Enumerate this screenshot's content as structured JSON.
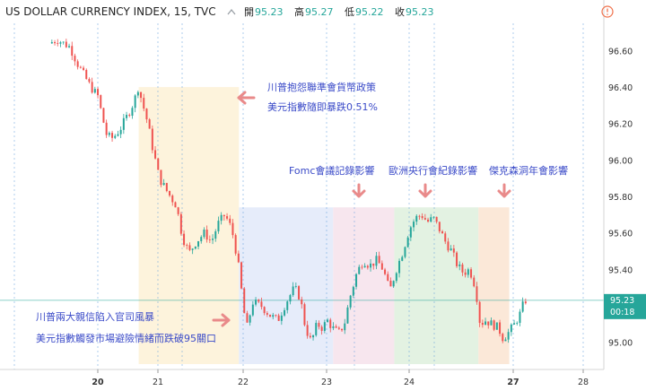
{
  "header": {
    "title": "US DOLLAR CURRENCY INDEX, 15, TVC",
    "open_label": "開",
    "open_value": "95.23",
    "high_label": "高",
    "high_value": "95.27",
    "low_label": "低",
    "low_value": "95.22",
    "close_label": "收",
    "close_value": "95.23",
    "warning_icon": "alert-circle-icon",
    "collapse_icon": "chevron-up-icon"
  },
  "colors": {
    "up": "#26a69a",
    "down": "#ef5350",
    "annotation_text": "#3b4bc8",
    "arrow": "#e98a8a",
    "price_tag": "#26a69a",
    "price_line": "#26a69a",
    "grid_vertical": "#4a90d9"
  },
  "annotations": [
    {
      "id": "a1",
      "lines": [
        "川普抱怨聯準會貨幣政策",
        "美元指數隨即暴跌0.51%"
      ]
    },
    {
      "id": "a2",
      "lines": [
        "川普兩大親信陷入官司風暴",
        "美元指數觸發市場避險情緒而跌破95關口"
      ]
    },
    {
      "id": "a3",
      "lines": [
        "Fomc會議記錄影響"
      ]
    },
    {
      "id": "a4",
      "lines": [
        "歐洲央行會紀錄影響"
      ]
    },
    {
      "id": "a5",
      "lines": [
        "傑克森洞年會影響"
      ]
    }
  ],
  "price_tag": {
    "last": "95.23",
    "countdown": "00:18"
  },
  "chart_data": {
    "type": "candlestick",
    "title": "US DOLLAR CURRENCY INDEX, 15, TVC",
    "x_ticks": [
      "20",
      "21",
      "22",
      "23",
      "24",
      "27",
      "28"
    ],
    "y_ticks": [
      "96.60",
      "96.40",
      "96.20",
      "96.00",
      "95.80",
      "95.60",
      "95.40",
      "95.20",
      "95.00"
    ],
    "ylim": [
      94.87,
      96.74
    ],
    "last_price": 95.23,
    "highlight_zones": [
      {
        "start": 20.68,
        "end": 21.95,
        "color": "#fdf3dc"
      },
      {
        "start": 21.95,
        "end": 23.08,
        "color": "#e6ecfa"
      },
      {
        "start": 23.08,
        "end": 23.82,
        "color": "#f7e6ee"
      },
      {
        "start": 23.82,
        "end": 24.92,
        "color": "#e3f2e2"
      },
      {
        "start": 24.92,
        "end": 25.3,
        "color": "#fbe8d8"
      }
    ],
    "price_path": [
      [
        19.45,
        96.64
      ],
      [
        19.55,
        96.66
      ],
      [
        19.7,
        96.62
      ],
      [
        19.8,
        96.52
      ],
      [
        19.95,
        96.4
      ],
      [
        20.05,
        96.35
      ],
      [
        20.12,
        96.24
      ],
      [
        20.2,
        96.13
      ],
      [
        20.3,
        96.12
      ],
      [
        20.42,
        96.17
      ],
      [
        20.55,
        96.25
      ],
      [
        20.65,
        96.32
      ],
      [
        20.72,
        96.4
      ],
      [
        20.8,
        96.3
      ],
      [
        20.88,
        96.2
      ],
      [
        20.95,
        96.08
      ],
      [
        21.05,
        95.9
      ],
      [
        21.15,
        95.82
      ],
      [
        21.25,
        95.75
      ],
      [
        21.32,
        95.58
      ],
      [
        21.4,
        95.49
      ],
      [
        21.48,
        95.55
      ],
      [
        21.58,
        95.6
      ],
      [
        21.66,
        95.55
      ],
      [
        21.74,
        95.65
      ],
      [
        21.82,
        95.7
      ],
      [
        21.9,
        95.62
      ],
      [
        21.97,
        95.45
      ],
      [
        22.05,
        95.15
      ],
      [
        22.08,
        95.08
      ],
      [
        22.15,
        95.22
      ],
      [
        22.25,
        95.2
      ],
      [
        22.35,
        95.15
      ],
      [
        22.45,
        95.12
      ],
      [
        22.55,
        95.22
      ],
      [
        22.65,
        95.3
      ],
      [
        22.72,
        95.24
      ],
      [
        22.78,
        95.08
      ],
      [
        22.85,
        95.0
      ],
      [
        22.92,
        95.1
      ],
      [
        22.98,
        95.08
      ],
      [
        23.05,
        95.12
      ],
      [
        23.1,
        95.08
      ],
      [
        23.18,
        95.05
      ],
      [
        23.25,
        95.1
      ],
      [
        23.32,
        95.25
      ],
      [
        23.4,
        95.38
      ],
      [
        23.48,
        95.45
      ],
      [
        23.56,
        95.42
      ],
      [
        23.64,
        95.45
      ],
      [
        23.72,
        95.4
      ],
      [
        23.8,
        95.28
      ],
      [
        23.88,
        95.4
      ],
      [
        23.96,
        95.5
      ],
      [
        24.04,
        95.62
      ],
      [
        24.12,
        95.68
      ],
      [
        24.2,
        95.7
      ],
      [
        24.28,
        95.66
      ],
      [
        24.36,
        95.68
      ],
      [
        24.44,
        95.62
      ],
      [
        24.52,
        95.55
      ],
      [
        24.6,
        95.5
      ],
      [
        24.68,
        95.42
      ],
      [
        24.76,
        95.38
      ],
      [
        24.84,
        95.4
      ],
      [
        24.92,
        95.3
      ],
      [
        24.98,
        95.1
      ],
      [
        25.05,
        95.12
      ],
      [
        25.12,
        95.1
      ],
      [
        25.2,
        95.08
      ],
      [
        25.26,
        95.02
      ],
      [
        25.32,
        95.05
      ],
      [
        25.4,
        95.1
      ],
      [
        25.47,
        95.16
      ],
      [
        25.52,
        95.23
      ]
    ]
  }
}
